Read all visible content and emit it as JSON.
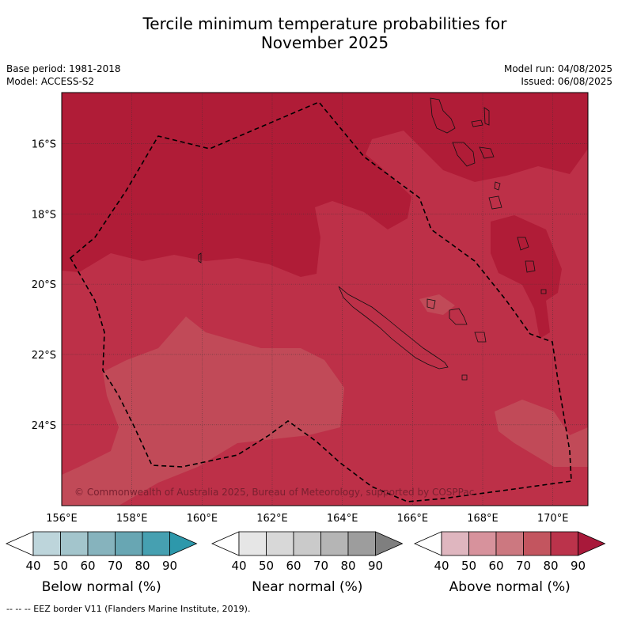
{
  "title": {
    "line1": "Tercile minimum temperature probabilities for",
    "line2": "November 2025"
  },
  "meta": {
    "base_period": "Base period: 1981-2018",
    "model": "Model: ACCESS-S2",
    "model_run": "Model run: 04/08/2025",
    "issued": "Issued: 06/08/2025"
  },
  "map": {
    "lat_labels": [
      "16°S",
      "18°S",
      "20°S",
      "22°S",
      "24°S"
    ],
    "lat_values": [
      -16,
      -18,
      -20,
      -22,
      -24
    ],
    "lon_labels": [
      "156°E",
      "158°E",
      "160°E",
      "162°E",
      "164°E",
      "166°E",
      "168°E",
      "170°E"
    ],
    "lon_values": [
      156,
      158,
      160,
      162,
      164,
      166,
      168,
      170
    ],
    "extent": {
      "lon_min": 156,
      "lon_max": 171,
      "lat_min": -26.3,
      "lat_max": -14.55
    },
    "copyright": "© Commonwealth of Australia 2025, Bureau of Meteorology, supported by COSPPac",
    "colors": {
      "above_90": "#b01c37",
      "above_80": "#bd3048",
      "above_70": "#c14a58",
      "ocean_ref": "#b01c37"
    }
  },
  "legends": [
    {
      "name": "below",
      "label": "Below normal (%)",
      "ticks": [
        "40",
        "50",
        "60",
        "70",
        "80",
        "90"
      ],
      "colors": [
        "#ffffff",
        "#bdd5db",
        "#a3c5cc",
        "#86b3bd",
        "#68a6b3",
        "#46a0b1",
        "#2d98ab"
      ]
    },
    {
      "name": "near",
      "label": "Near normal (%)",
      "ticks": [
        "40",
        "50",
        "60",
        "70",
        "80",
        "90"
      ],
      "colors": [
        "#ffffff",
        "#e6e6e6",
        "#d8d8d8",
        "#cacaca",
        "#b5b5b5",
        "#9d9d9d",
        "#7f7f7f"
      ]
    },
    {
      "name": "above",
      "label": "Above normal (%)",
      "ticks": [
        "40",
        "50",
        "60",
        "70",
        "80",
        "90"
      ],
      "colors": [
        "#ffffff",
        "#dfb6bf",
        "#d7929c",
        "#cc7880",
        "#c3555f",
        "#bb334b",
        "#a8193a"
      ]
    }
  ],
  "footnote": "--  --  -- EEZ border V11 (Flanders Marine Institute, 2019)."
}
